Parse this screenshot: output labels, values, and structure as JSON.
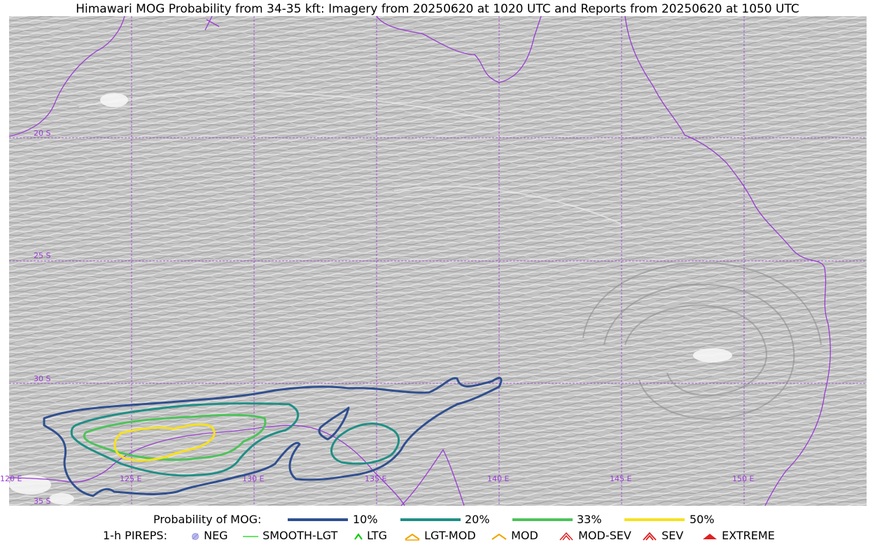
{
  "title": "Himawari MOG Probability from 34-35 kft: Imagery from 20250620 at 1020 UTC and Reports from 20250620 at 1050 UTC",
  "colors": {
    "grid": "#9a3bd4",
    "coast": "#9a3bd4",
    "p10": "#2f4f8f",
    "p20": "#1f8f86",
    "p33": "#4cc35a",
    "p50": "#f7e11e"
  },
  "grid_labels": {
    "lat": [
      "20 S",
      "25 S",
      "30 S",
      "35 S"
    ],
    "lon": [
      "120 E",
      "125 E",
      "130 E",
      "135 E",
      "140 E",
      "145 E",
      "150 E"
    ]
  },
  "legend": {
    "prob_title": "Probability of MOG:",
    "prob_items": [
      {
        "label": "10%",
        "color": "#2f4f8f"
      },
      {
        "label": "20%",
        "color": "#1f8f86"
      },
      {
        "label": "33%",
        "color": "#4cc35a"
      },
      {
        "label": "50%",
        "color": "#f7e11e"
      }
    ],
    "pirep_title": "1-h PIREPS:",
    "pirep_items": [
      {
        "label": "NEG",
        "icon": "neg-circle-icon",
        "color": "#b9b9f0"
      },
      {
        "label": "SMOOTH-LGT",
        "icon": "line-icon",
        "color": "#33dd33"
      },
      {
        "label": "LTG",
        "icon": "caret-icon",
        "color": "#00cc00"
      },
      {
        "label": "LGT-MOD",
        "icon": "caret-bar-icon",
        "color": "#f0a500"
      },
      {
        "label": "MOD",
        "icon": "caret-icon",
        "color": "#f0a500"
      },
      {
        "label": "MOD-SEV",
        "icon": "double-caret-icon",
        "color": "#e02020"
      },
      {
        "label": "SEV",
        "icon": "double-caret-icon",
        "color": "#e02020"
      },
      {
        "label": "EXTREME",
        "icon": "filled-caret-icon",
        "color": "#e02020"
      }
    ]
  }
}
